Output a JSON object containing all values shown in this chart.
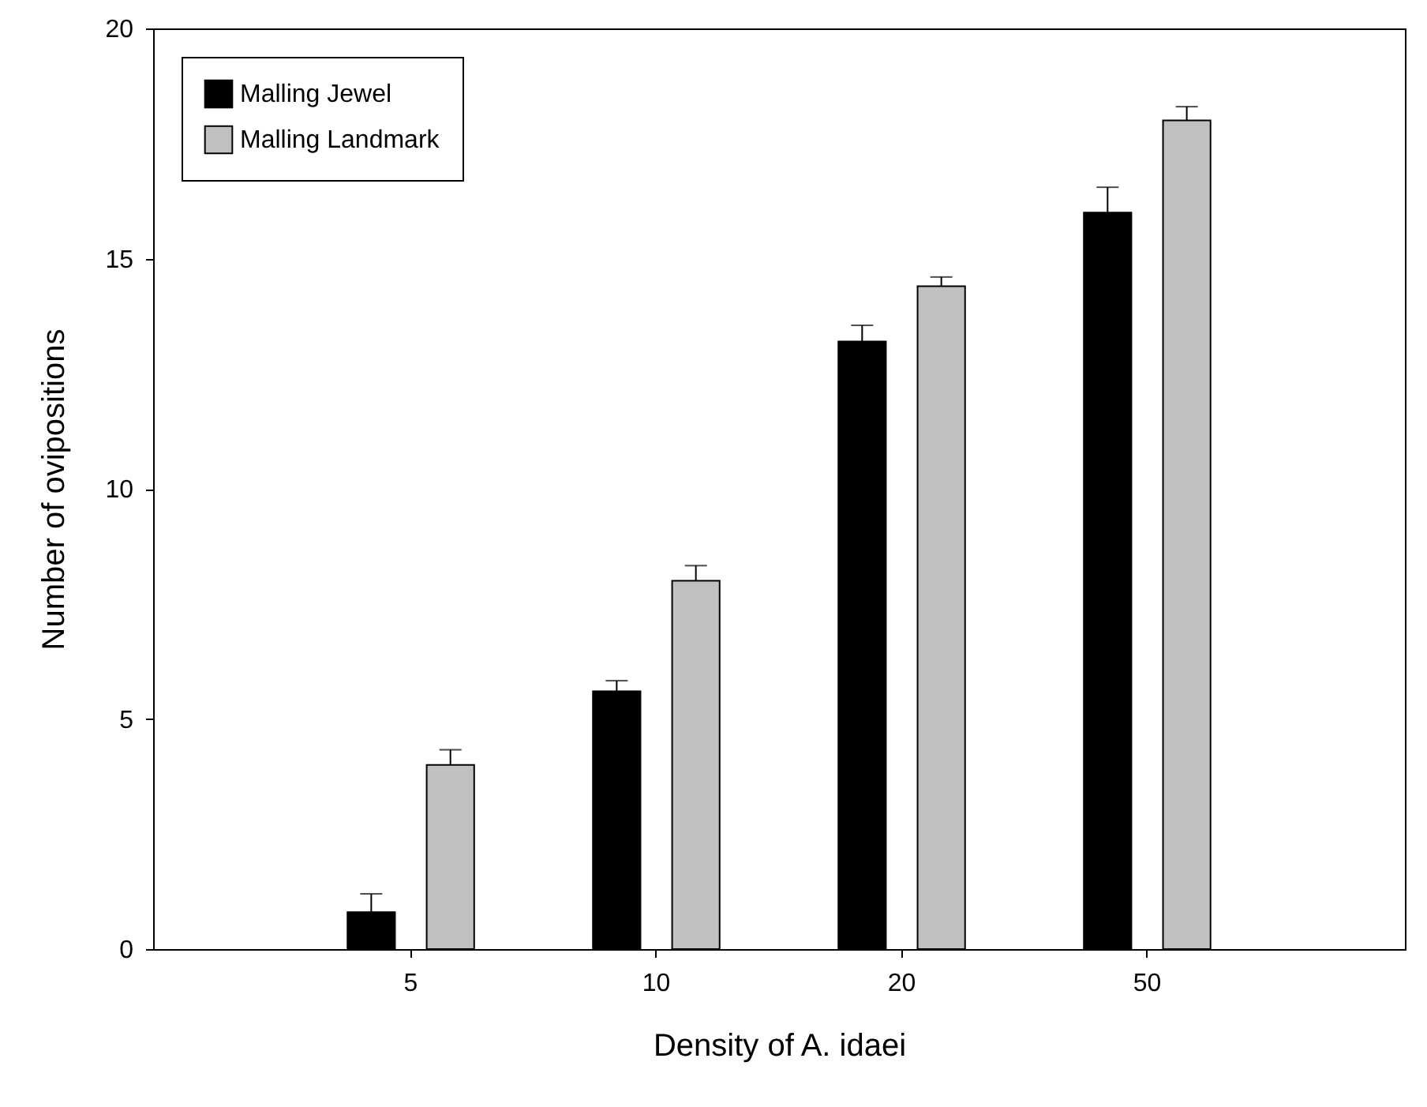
{
  "chart_data": {
    "type": "bar",
    "xlabel": "Density of A. idaei",
    "ylabel": "Number of ovipositions",
    "categories": [
      "5",
      "10",
      "20",
      "50"
    ],
    "series": [
      {
        "name": "Malling Jewel",
        "color": "#000000",
        "values": [
          0.8,
          5.6,
          13.2,
          16.0
        ],
        "errors": [
          [
            0.8,
            1.2
          ],
          [
            5.6,
            5.83
          ],
          [
            13.2,
            13.55
          ],
          [
            16.0,
            16.55
          ]
        ]
      },
      {
        "name": "Malling Landmark",
        "color": "#c0c0c0",
        "values": [
          4.0,
          8.0,
          14.4,
          18.0
        ],
        "errors": [
          [
            4.0,
            4.33
          ],
          [
            8.0,
            8.33
          ],
          [
            14.4,
            14.6
          ],
          [
            18.0,
            18.3
          ]
        ]
      }
    ],
    "ylim": [
      0,
      20
    ],
    "yticks": [
      0,
      5,
      10,
      15,
      20
    ],
    "grid": false,
    "legend": "top left"
  }
}
